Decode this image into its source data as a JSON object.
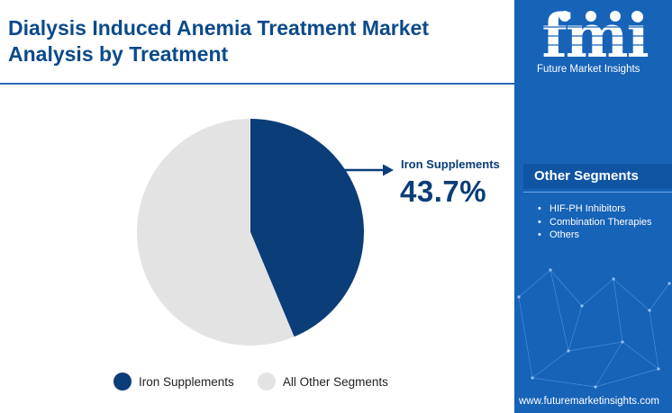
{
  "header": {
    "title": "Dialysis Induced Anemia Treatment Market Analysis by Treatment"
  },
  "chart_data": {
    "type": "pie",
    "title": "Dialysis Induced Anemia Treatment Market Analysis by Treatment",
    "slices": [
      {
        "name": "Iron Supplements",
        "value": 43.7,
        "color": "#0b3d78"
      },
      {
        "name": "All Other Segments",
        "value": 56.3,
        "color": "#e3e3e3"
      }
    ],
    "callout": {
      "label": "Iron Supplements",
      "value": "43.7%"
    },
    "legend": {
      "position": "bottom",
      "items": [
        "Iron Supplements",
        "All Other Segments"
      ]
    }
  },
  "sidebar": {
    "brand": "fmi",
    "tagline": "Future Market Insights",
    "segments_heading": "Other Segments",
    "segments": [
      "HIF-PH Inhibitors",
      "Combination Therapies",
      "Others"
    ],
    "url": "www.futuremarketinsights.com"
  },
  "colors": {
    "accent": "#0b3d78",
    "sidebar_bg": "#1663b8",
    "title": "#0b4a8b"
  }
}
